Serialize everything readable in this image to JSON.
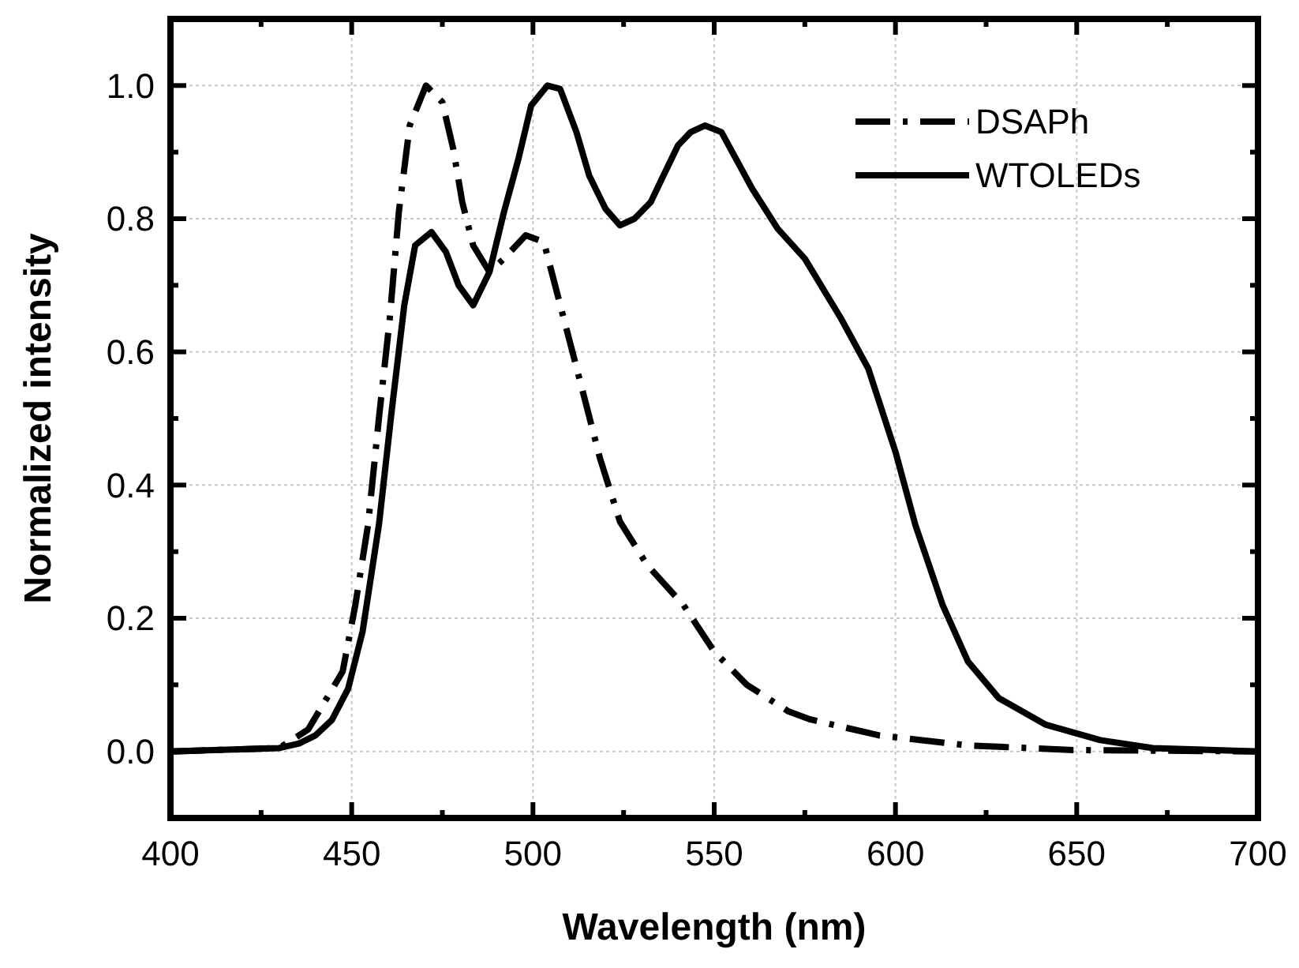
{
  "chart_data": {
    "type": "line",
    "xlabel": "Wavelength (nm)",
    "ylabel": "Normalized intensity",
    "xlim": [
      400,
      700
    ],
    "ylim": [
      -0.1,
      1.1
    ],
    "xticks": [
      400,
      {
        "value": 425,
        "label": null
      },
      450,
      {
        "value": 475,
        "label": null
      },
      500,
      {
        "value": 525,
        "label": null
      },
      550,
      {
        "value": 575,
        "label": null
      },
      600,
      {
        "value": 625,
        "label": null
      },
      650,
      {
        "value": 675,
        "label": null
      },
      700
    ],
    "yticks": [
      {
        "value": -0.1,
        "label": null
      },
      {
        "value": 0,
        "label": "0.0"
      },
      {
        "value": 0.1,
        "label": null
      },
      {
        "value": 0.2,
        "label": "0.2"
      },
      {
        "value": 0.3,
        "label": null
      },
      {
        "value": 0.4,
        "label": "0.4"
      },
      {
        "value": 0.5,
        "label": null
      },
      {
        "value": 0.6,
        "label": "0.6"
      },
      {
        "value": 0.7,
        "label": null
      },
      {
        "value": 0.8,
        "label": "0.8"
      },
      {
        "value": 0.9,
        "label": null
      },
      {
        "value": 1.0,
        "label": "1.0"
      },
      {
        "value": 1.1,
        "label": null
      }
    ],
    "grid": true,
    "legend": "top right",
    "series": [
      {
        "name": "DSAPh",
        "color": "#000000",
        "line_style": "dashed",
        "x": [
          400,
          430,
          438,
          447.5,
          451,
          454.5,
          457.5,
          460.5,
          463,
          466,
          470.5,
          475,
          478,
          480.5,
          483.5,
          488,
          492,
          498,
          503,
          508.5,
          514,
          518.5,
          524,
          531.5,
          541.5,
          550,
          559,
          570.5,
          576.5,
          595.5,
          620,
          649,
          700
        ],
        "values": [
          0,
          0.005,
          0.033,
          0.12,
          0.22,
          0.34,
          0.5,
          0.65,
          0.81,
          0.94,
          1.0,
          0.975,
          0.905,
          0.825,
          0.76,
          0.72,
          0.74,
          0.775,
          0.765,
          0.65,
          0.535,
          0.44,
          0.345,
          0.28,
          0.22,
          0.15,
          0.1,
          0.06,
          0.048,
          0.024,
          0.009,
          0.002,
          0
        ]
      },
      {
        "name": "WTOLEDs",
        "color": "#000000",
        "line_style": "solid",
        "x": [
          400,
          430,
          435.5,
          440,
          444.5,
          449,
          453,
          457.5,
          461,
          464.5,
          467.5,
          472,
          476,
          479.5,
          483.5,
          488,
          492,
          496,
          499.5,
          504,
          507.5,
          512,
          515.5,
          520,
          524,
          528,
          532.5,
          536,
          540,
          543.5,
          547.5,
          552,
          556,
          560.5,
          567.5,
          575,
          585,
          592.5,
          600,
          605.5,
          613,
          620,
          628.5,
          641.5,
          656.5,
          671,
          700
        ],
        "values": [
          0,
          0.005,
          0.012,
          0.024,
          0.047,
          0.094,
          0.18,
          0.34,
          0.51,
          0.67,
          0.76,
          0.78,
          0.75,
          0.7,
          0.67,
          0.72,
          0.81,
          0.89,
          0.97,
          1.0,
          0.995,
          0.93,
          0.865,
          0.815,
          0.79,
          0.8,
          0.825,
          0.865,
          0.91,
          0.93,
          0.94,
          0.93,
          0.89,
          0.845,
          0.785,
          0.74,
          0.65,
          0.575,
          0.45,
          0.34,
          0.22,
          0.135,
          0.08,
          0.04,
          0.017,
          0.005,
          0
        ]
      }
    ]
  }
}
